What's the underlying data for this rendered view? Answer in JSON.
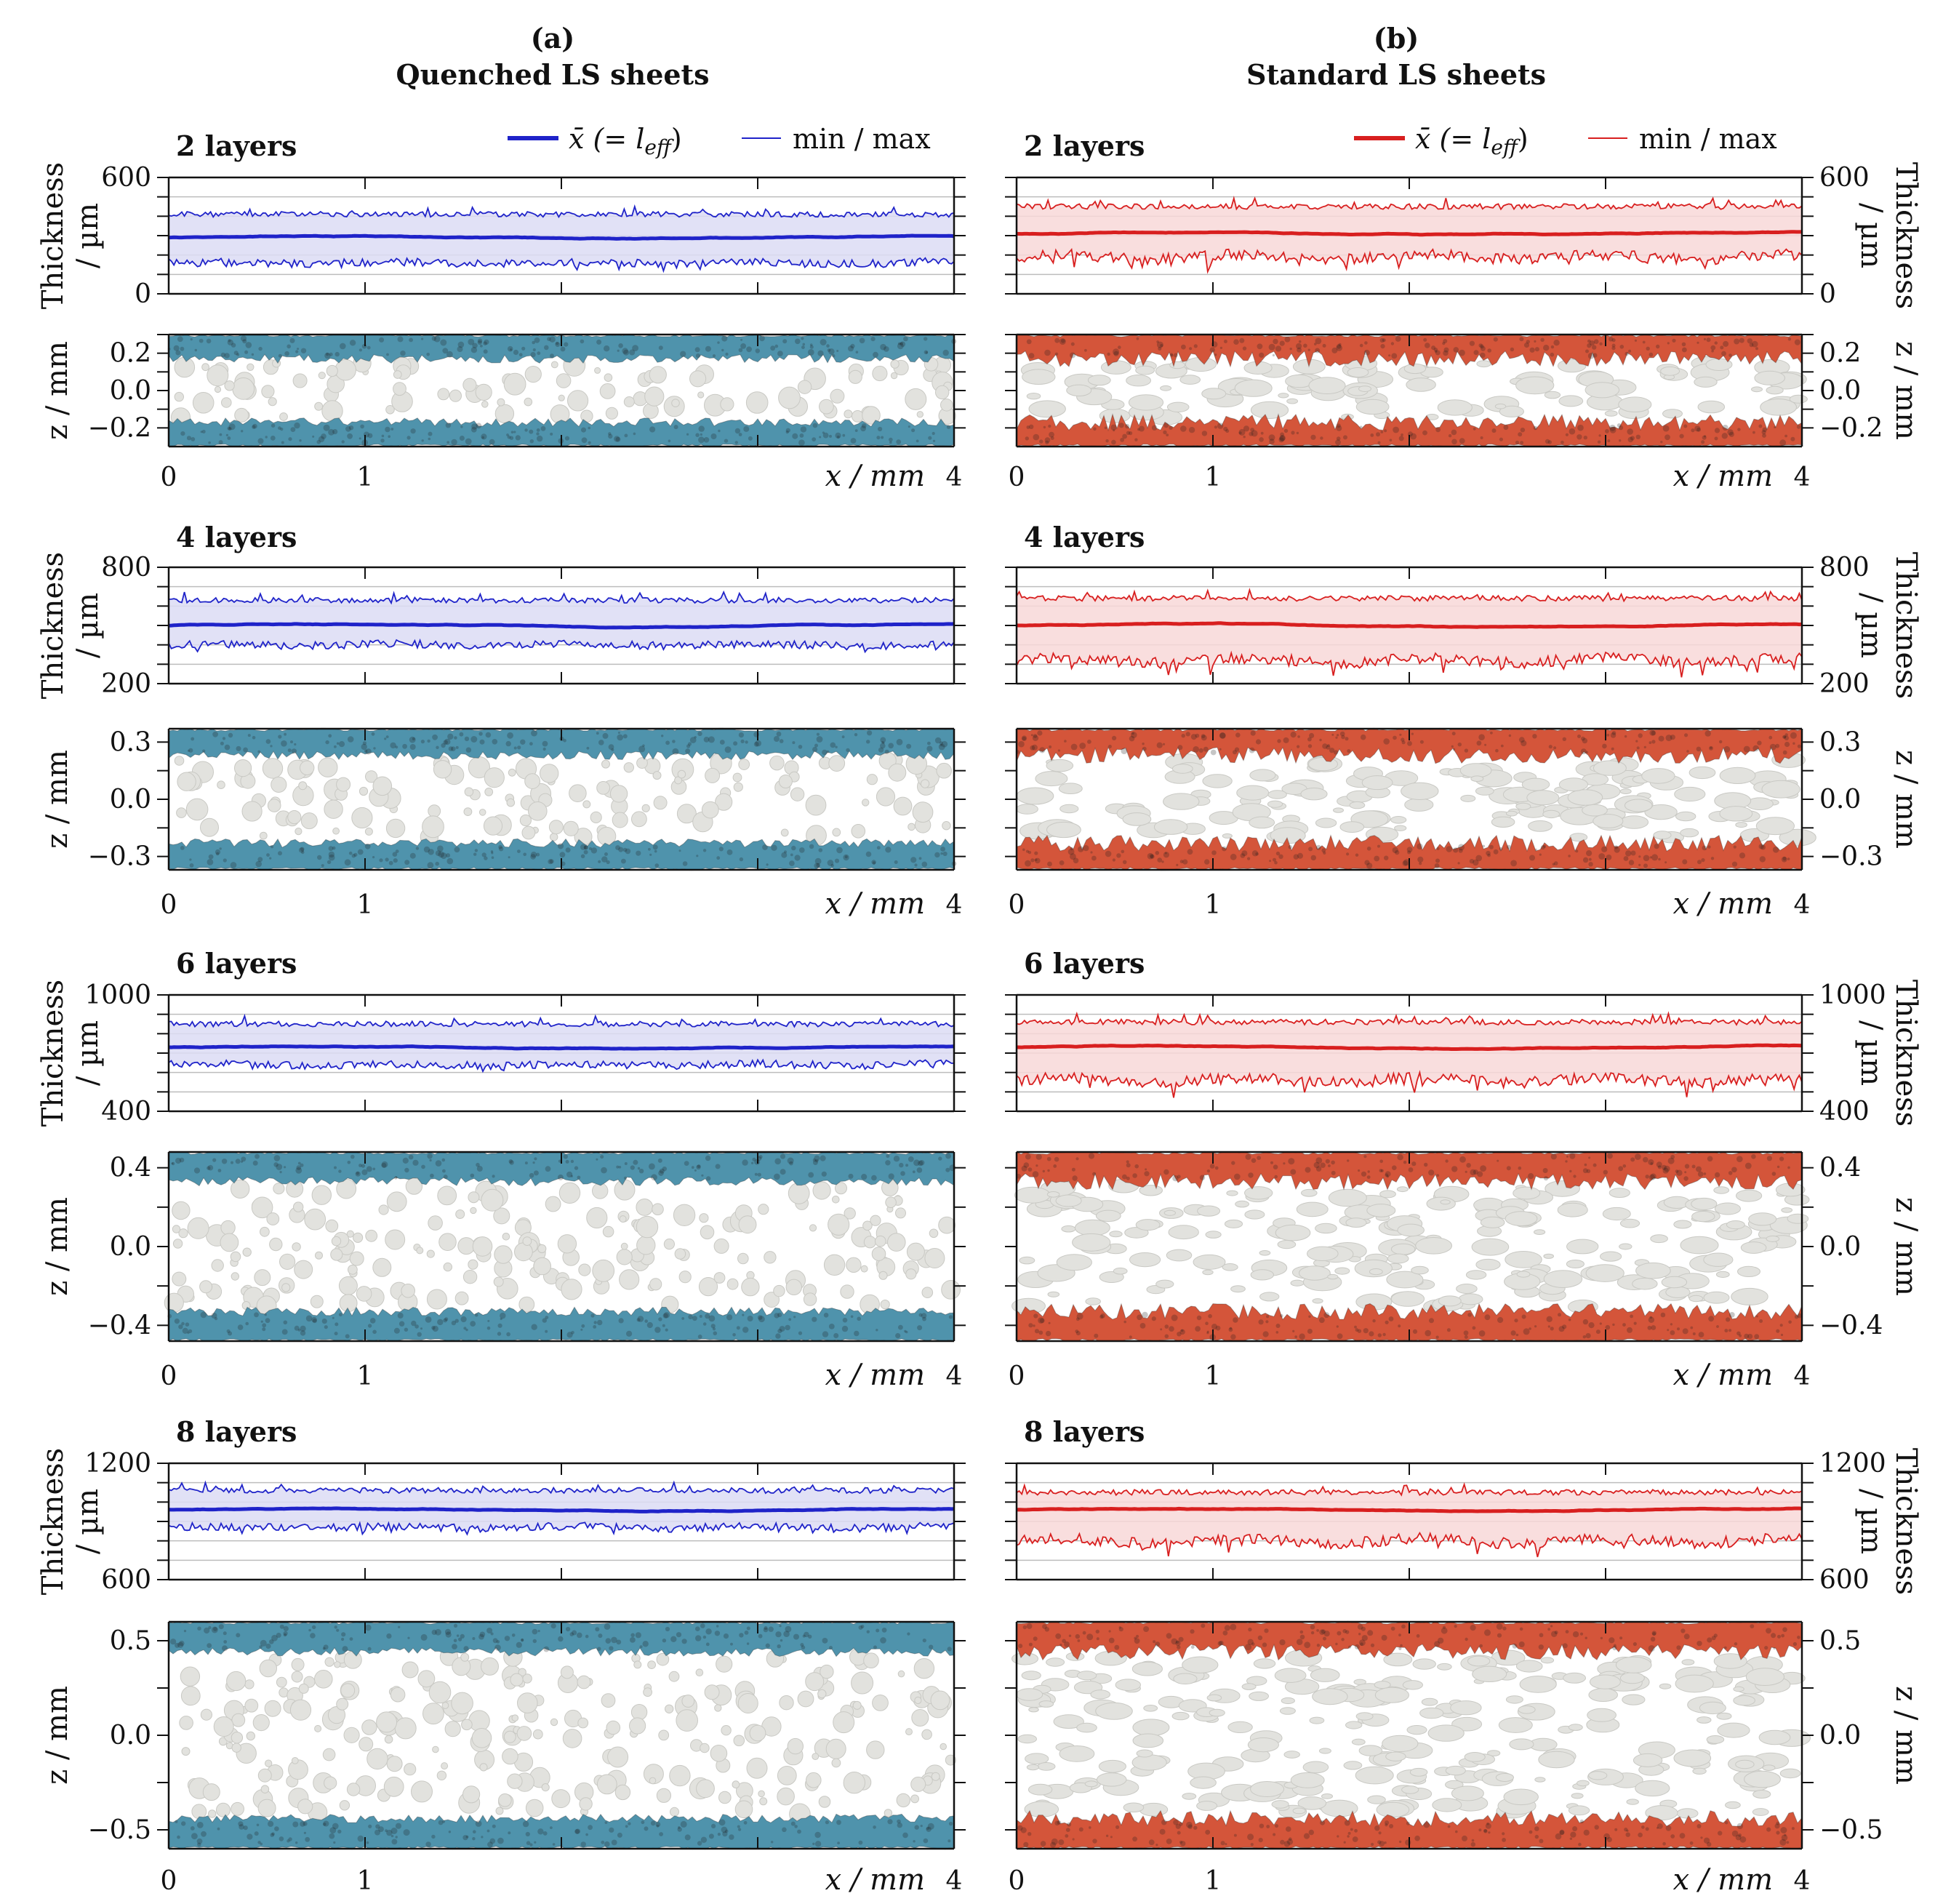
{
  "panels": [
    {
      "key": "a",
      "label": "(a)",
      "title": "Quenched LS sheets",
      "legend": {
        "mean": "x̄ (= l",
        "mean_sub": "eff",
        "mean_close": ")",
        "minmax": "min / max"
      }
    },
    {
      "key": "b",
      "label": "(b)",
      "title": "Standard LS sheets",
      "legend": {
        "mean": "x̄ (= l",
        "mean_sub": "eff",
        "mean_close": ")",
        "minmax": "min / max"
      }
    }
  ],
  "colors": {
    "quenched_line": "#1f23c9",
    "quenched_fill": "#dcdcf4",
    "quenched_layer": "#4f93ac",
    "standard_line": "#d81f1f",
    "standard_fill": "#f8d8d8",
    "standard_layer": "#d4553a",
    "particle": "#e2e2de"
  },
  "axes": {
    "thickness_label_left": "Thickness",
    "thickness_label_right": "Thickness",
    "thickness_unit": "/ µm",
    "z_label": "z / mm",
    "x_label": "x / mm",
    "x_ticks": [
      "0",
      "1",
      "4"
    ]
  },
  "chart_data": [
    {
      "type": "line",
      "panel": "a",
      "layers": "2 layers",
      "title": "2 layers",
      "xlabel": "x / mm",
      "ylabel": "Thickness / µm",
      "xlim": [
        0,
        4
      ],
      "ylim": [
        0,
        600
      ],
      "yticks": [
        0,
        600
      ],
      "mean": 290,
      "min": 160,
      "max": 410,
      "series": [
        {
          "name": "x̄ (= l_eff)"
        },
        {
          "name": "min / max"
        }
      ]
    },
    {
      "type": "line",
      "panel": "b",
      "layers": "2 layers",
      "title": "2 layers",
      "xlabel": "x / mm",
      "ylabel": "Thickness / µm",
      "xlim": [
        0,
        4
      ],
      "ylim": [
        0,
        600
      ],
      "yticks": [
        0,
        600
      ],
      "mean": 310,
      "min": 190,
      "max": 450,
      "series": [
        {
          "name": "x̄ (= l_eff)"
        },
        {
          "name": "min / max"
        }
      ]
    },
    {
      "type": "line",
      "panel": "a",
      "layers": "4 layers",
      "title": "4 layers",
      "xlabel": "x / mm",
      "ylabel": "Thickness / µm",
      "xlim": [
        0,
        4
      ],
      "ylim": [
        200,
        800
      ],
      "yticks": [
        200,
        800
      ],
      "mean": 500,
      "min": 400,
      "max": 630,
      "series": [
        {
          "name": "x̄ (= l_eff)"
        },
        {
          "name": "min / max"
        }
      ]
    },
    {
      "type": "line",
      "panel": "b",
      "layers": "4 layers",
      "title": "4 layers",
      "xlabel": "x / mm",
      "ylabel": "Thickness / µm",
      "xlim": [
        0,
        4
      ],
      "ylim": [
        200,
        800
      ],
      "yticks": [
        200,
        800
      ],
      "mean": 500,
      "min": 320,
      "max": 640,
      "series": [
        {
          "name": "x̄ (= l_eff)"
        },
        {
          "name": "min / max"
        }
      ]
    },
    {
      "type": "line",
      "panel": "a",
      "layers": "6 layers",
      "title": "6 layers",
      "xlabel": "x / mm",
      "ylabel": "Thickness / µm",
      "xlim": [
        0,
        4
      ],
      "ylim": [
        400,
        1000
      ],
      "yticks": [
        400,
        1000
      ],
      "mean": 730,
      "min": 640,
      "max": 850,
      "series": [
        {
          "name": "x̄ (= l_eff)"
        },
        {
          "name": "min / max"
        }
      ]
    },
    {
      "type": "line",
      "panel": "b",
      "layers": "6 layers",
      "title": "6 layers",
      "xlabel": "x / mm",
      "ylabel": "Thickness / µm",
      "xlim": [
        0,
        4
      ],
      "ylim": [
        400,
        1000
      ],
      "yticks": [
        400,
        1000
      ],
      "mean": 730,
      "min": 560,
      "max": 860,
      "series": [
        {
          "name": "x̄ (= l_eff)"
        },
        {
          "name": "min / max"
        }
      ]
    },
    {
      "type": "line",
      "panel": "a",
      "layers": "8 layers",
      "title": "8 layers",
      "xlabel": "x / mm",
      "ylabel": "Thickness / µm",
      "xlim": [
        0,
        4
      ],
      "ylim": [
        600,
        1200
      ],
      "yticks": [
        600,
        1200
      ],
      "mean": 960,
      "min": 870,
      "max": 1060,
      "series": [
        {
          "name": "x̄ (= l_eff)"
        },
        {
          "name": "min / max"
        }
      ]
    },
    {
      "type": "line",
      "panel": "b",
      "layers": "8 layers",
      "title": "8 layers",
      "xlabel": "x / mm",
      "ylabel": "Thickness / µm",
      "xlim": [
        0,
        4
      ],
      "ylim": [
        600,
        1200
      ],
      "yticks": [
        600,
        1200
      ],
      "mean": 960,
      "min": 800,
      "max": 1050,
      "series": [
        {
          "name": "x̄ (= l_eff)"
        },
        {
          "name": "min / max"
        }
      ]
    }
  ],
  "cross_sections": [
    {
      "panel": "a",
      "layers": "2 layers",
      "zlim": [
        -0.3,
        0.3
      ],
      "zticks": [
        "0.2",
        "0.0",
        "-0.2"
      ],
      "zvals": [
        0.2,
        0.0,
        -0.2
      ],
      "layer_thickness": 0.13
    },
    {
      "panel": "b",
      "layers": "2 layers",
      "zlim": [
        -0.3,
        0.3
      ],
      "zticks": [
        "0.2",
        "0.0",
        "-0.2"
      ],
      "zvals": [
        0.2,
        0.0,
        -0.2
      ],
      "layer_thickness": 0.13
    },
    {
      "panel": "a",
      "layers": "4 layers",
      "zlim": [
        -0.37,
        0.37
      ],
      "zticks": [
        "0.3",
        "0.0",
        "-0.3"
      ],
      "zvals": [
        0.3,
        0.0,
        -0.3
      ],
      "layer_thickness": 0.14
    },
    {
      "panel": "b",
      "layers": "4 layers",
      "zlim": [
        -0.37,
        0.37
      ],
      "zticks": [
        "0.3",
        "0.0",
        "-0.3"
      ],
      "zvals": [
        0.3,
        0.0,
        -0.3
      ],
      "layer_thickness": 0.14
    },
    {
      "panel": "a",
      "layers": "6 layers",
      "zlim": [
        -0.48,
        0.48
      ],
      "zticks": [
        "0.4",
        "0.0",
        "-0.4"
      ],
      "zvals": [
        0.4,
        0.0,
        -0.4
      ],
      "layer_thickness": 0.15
    },
    {
      "panel": "b",
      "layers": "6 layers",
      "zlim": [
        -0.48,
        0.48
      ],
      "zticks": [
        "0.4",
        "0.0",
        "-0.4"
      ],
      "zvals": [
        0.4,
        0.0,
        -0.4
      ],
      "layer_thickness": 0.15
    },
    {
      "panel": "a",
      "layers": "8 layers",
      "zlim": [
        -0.6,
        0.6
      ],
      "zticks": [
        "0.5",
        "0.0",
        "-0.5"
      ],
      "zvals": [
        0.5,
        0.0,
        -0.5
      ],
      "layer_thickness": 0.16
    },
    {
      "panel": "b",
      "layers": "8 layers",
      "zlim": [
        -0.6,
        0.6
      ],
      "zticks": [
        "0.5",
        "0.0",
        "-0.5"
      ],
      "zvals": [
        0.5,
        0.0,
        -0.5
      ],
      "layer_thickness": 0.16
    }
  ]
}
